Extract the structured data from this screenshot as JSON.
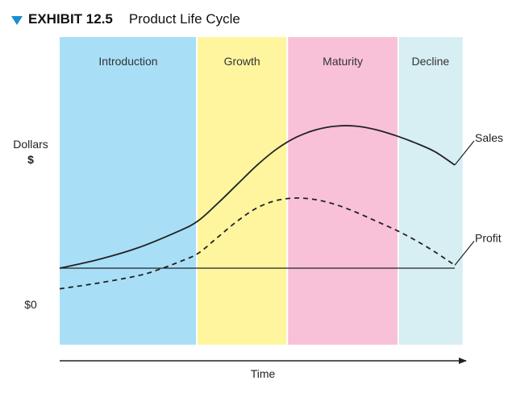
{
  "header": {
    "exhibit": "EXHIBIT 12.5",
    "title": "Product Life Cycle"
  },
  "chart_data": {
    "type": "line",
    "title": "Product Life Cycle",
    "xlabel": "Time",
    "ylabel": "Dollars",
    "ylabel_symbol": "$",
    "y_zero_label": "$0",
    "xlim": [
      0,
      10
    ],
    "ylim": [
      -0.6,
      6
    ],
    "stages": [
      {
        "name": "Introduction",
        "start": 0,
        "end": 3.47,
        "color": "#a8dff7"
      },
      {
        "name": "Growth",
        "start": 3.47,
        "end": 5.76,
        "color": "#fef59e"
      },
      {
        "name": "Maturity",
        "start": 5.76,
        "end": 8.57,
        "color": "#f8c1d8"
      },
      {
        "name": "Decline",
        "start": 8.57,
        "end": 10.2,
        "color": "#d7eef3"
      }
    ],
    "series": [
      {
        "name": "Sales",
        "style": "solid",
        "x": [
          0,
          1,
          2,
          3,
          3.5,
          4,
          4.5,
          5,
          5.5,
          6,
          6.5,
          7,
          7.5,
          8,
          8.5,
          9,
          9.5,
          10
        ],
        "y": [
          0,
          0.3,
          0.7,
          1.25,
          1.6,
          2.2,
          2.85,
          3.5,
          4.05,
          4.45,
          4.7,
          4.82,
          4.82,
          4.7,
          4.5,
          4.25,
          3.95,
          3.5
        ]
      },
      {
        "name": "Profit",
        "style": "dashed",
        "x": [
          0,
          1,
          2,
          2.5,
          3,
          3.5,
          4,
          4.5,
          5,
          5.5,
          6,
          6.5,
          7,
          7.5,
          8,
          8.5,
          9,
          9.5,
          10
        ],
        "y": [
          -0.7,
          -0.5,
          -0.25,
          -0.05,
          0.2,
          0.5,
          1.05,
          1.6,
          2.05,
          2.3,
          2.38,
          2.32,
          2.15,
          1.9,
          1.6,
          1.3,
          0.95,
          0.55,
          0.1
        ]
      }
    ]
  }
}
